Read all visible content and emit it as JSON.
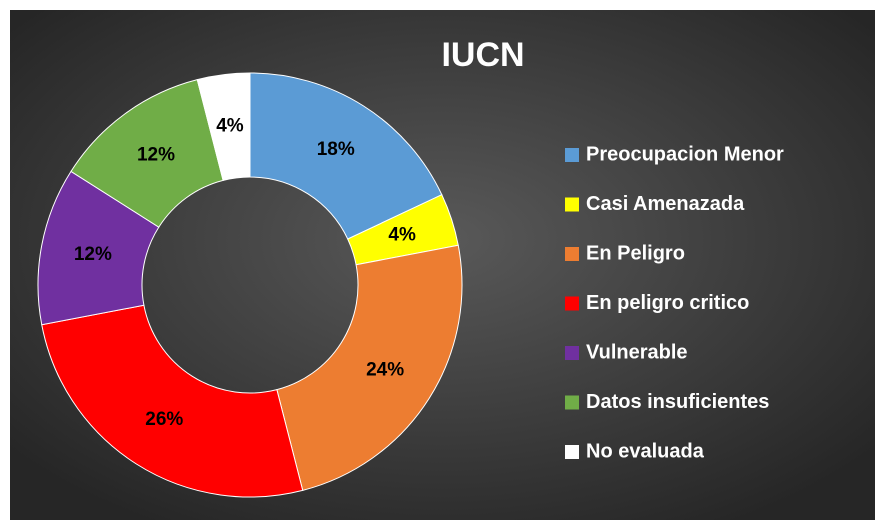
{
  "chart_data": {
    "type": "donut",
    "title": "IUCN",
    "categories": [
      "Preocupacion Menor",
      "Casi Amenazada",
      "En Peligro",
      "En peligro critico",
      "Vulnerable",
      "Datos insuficientes",
      "No evaluada"
    ],
    "values": [
      18,
      4,
      24,
      26,
      12,
      12,
      4
    ],
    "value_labels": [
      "18%",
      "4%",
      "24%",
      "26%",
      "12%",
      "12%",
      "4%"
    ],
    "colors": [
      "#5b9bd5",
      "#ffff00",
      "#ed7d31",
      "#ff0000",
      "#7030a0",
      "#70ad47",
      "#ffffff"
    ],
    "legend": "right"
  }
}
